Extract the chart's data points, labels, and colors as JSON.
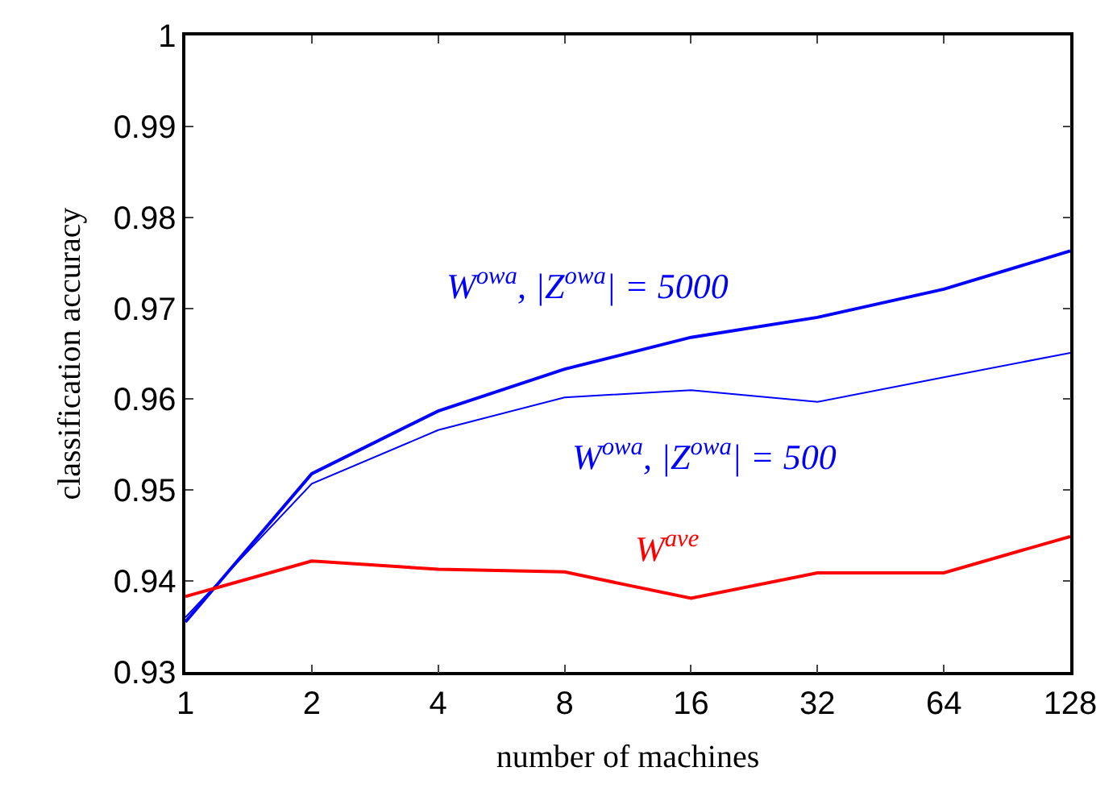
{
  "chart_data": {
    "type": "line",
    "xlabel": "number of machines",
    "ylabel": "classification accuracy",
    "x": [
      1,
      2,
      4,
      8,
      16,
      32,
      64,
      128
    ],
    "log": "x",
    "xlim": [
      1,
      128
    ],
    "xticks": [
      1,
      2,
      4,
      8,
      16,
      32,
      64,
      128
    ],
    "ylim": [
      0.93,
      1
    ],
    "yticks": [
      {
        "value": 0.93,
        "label": "0.93"
      },
      {
        "value": 0.94,
        "label": "0.94"
      },
      {
        "value": 0.95,
        "label": "0.95"
      },
      {
        "value": 0.96,
        "label": "0.96"
      },
      {
        "value": 0.97,
        "label": "0.97"
      },
      {
        "value": 0.98,
        "label": "0.98"
      },
      {
        "value": 0.99,
        "label": "0.99"
      },
      {
        "value": 1,
        "label": "1"
      }
    ],
    "legend": false,
    "marker": "none",
    "line_style": "solid",
    "series": [
      {
        "name": "W$^{owa}$, |Z$^{owa}$| = 5000",
        "color": "#0000ff",
        "values": [
          0.9355,
          0.9518,
          0.9587,
          0.9633,
          0.9668,
          0.969,
          0.9721,
          0.9763
        ]
      },
      {
        "name": "W$^{owa}$, |Z$^{owa}$| = 500",
        "color": "#0000ff",
        "values": [
          0.936,
          0.9507,
          0.9566,
          0.9602,
          0.961,
          0.9597,
          0.9624,
          0.9651
        ]
      },
      {
        "name": "W$^{ave}$",
        "color": "#ff0000",
        "values": [
          0.9383,
          0.9422,
          0.9413,
          0.941,
          0.9381,
          0.9409,
          0.9409,
          0.9449
        ]
      }
    ]
  }
}
